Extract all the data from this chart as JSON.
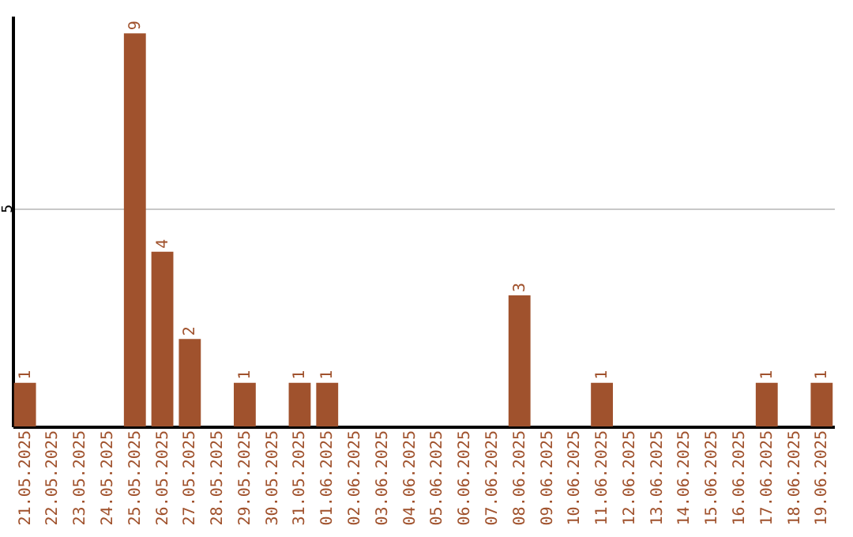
{
  "chart_data": {
    "type": "bar",
    "categories": [
      "21.05.2025",
      "22.05.2025",
      "23.05.2025",
      "24.05.2025",
      "25.05.2025",
      "26.05.2025",
      "27.05.2025",
      "28.05.2025",
      "29.05.2025",
      "30.05.2025",
      "31.05.2025",
      "01.06.2025",
      "02.06.2025",
      "03.06.2025",
      "04.06.2025",
      "05.06.2025",
      "06.06.2025",
      "07.06.2025",
      "08.06.2025",
      "09.06.2025",
      "10.06.2025",
      "11.06.2025",
      "12.06.2025",
      "13.06.2025",
      "14.06.2025",
      "15.06.2025",
      "16.06.2025",
      "17.06.2025",
      "18.06.2025",
      "19.06.2025"
    ],
    "values": [
      1,
      null,
      null,
      null,
      9,
      4,
      2,
      null,
      1,
      null,
      1,
      1,
      null,
      null,
      null,
      null,
      null,
      null,
      3,
      null,
      null,
      1,
      null,
      null,
      null,
      null,
      null,
      1,
      null,
      1
    ],
    "color": "#a0522d",
    "ylim": [
      0,
      9.4
    ],
    "yticks": [
      {
        "value": 0,
        "label": null
      },
      5
    ],
    "grid": "y",
    "data_labels": true
  }
}
